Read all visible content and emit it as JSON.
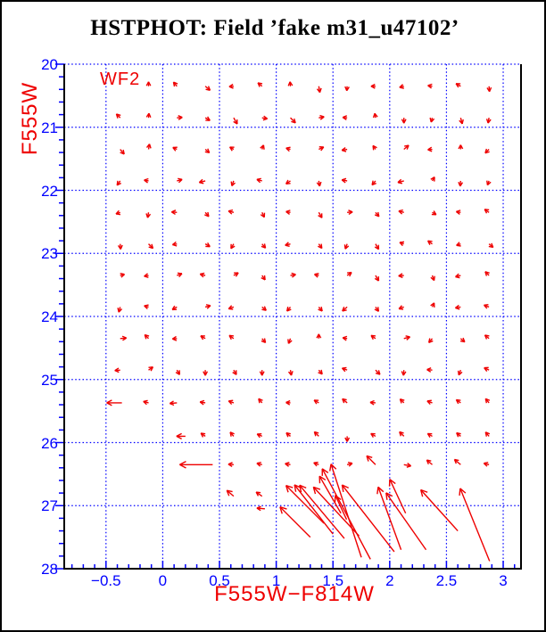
{
  "title": "HSTPHOT: Field ’fake m31_u47102’",
  "labels": {
    "field_label": "WF2",
    "x_axis": "F555W−F814W",
    "y_axis": "F555W"
  },
  "colors": {
    "background": "#ffffff",
    "frame": "#000000",
    "axis_blue": "#0000ff",
    "arrow_red": "#ee0000",
    "title_black": "#000000"
  },
  "chart_data": {
    "type": "quiver",
    "title": "HSTPHOT: Field ’fake m31_u47102’",
    "xlabel": "F555W−F814W",
    "ylabel": "F555W",
    "annotation": "WF2",
    "xlim": [
      -0.868,
      3.157
    ],
    "ylim": [
      20,
      28
    ],
    "y_axis_inverted_downward": true,
    "grid": "dotted",
    "x_major_ticks": [
      -0.5,
      0,
      0.5,
      1,
      1.5,
      2,
      2.5,
      3
    ],
    "x_tick_labels": [
      "−0.5",
      "0",
      "0.5",
      "1",
      "1.5",
      "2",
      "2.5",
      "3"
    ],
    "x_minor_step": 0.1,
    "y_major_ticks": [
      20,
      21,
      22,
      23,
      24,
      25,
      26,
      27,
      28
    ],
    "y_tick_labels": [
      "20",
      "21",
      "22",
      "23",
      "24",
      "25",
      "26",
      "27",
      "28"
    ],
    "y_minor_step": 0.2,
    "grid_x": [
      -0.5,
      0,
      0.5,
      1,
      1.5,
      2,
      2.5,
      3
    ],
    "grid_y": [
      20,
      21,
      22,
      23,
      24,
      25,
      26,
      27
    ],
    "arrow_format": "[color, magnitude, direction_deg (0=redder,90=brighter), length_px]",
    "arrows": [
      [
        -0.125,
        20.35,
        90,
        5
      ],
      [
        0.125,
        20.35,
        130,
        6
      ],
      [
        0.375,
        20.35,
        320,
        7
      ],
      [
        0.625,
        20.35,
        185,
        5
      ],
      [
        0.875,
        20.35,
        140,
        6
      ],
      [
        1.125,
        20.35,
        95,
        5
      ],
      [
        1.375,
        20.35,
        280,
        7
      ],
      [
        1.625,
        20.35,
        265,
        5
      ],
      [
        1.875,
        20.35,
        180,
        5
      ],
      [
        2.125,
        20.35,
        195,
        5
      ],
      [
        2.375,
        20.35,
        170,
        5
      ],
      [
        2.625,
        20.35,
        150,
        6
      ],
      [
        2.875,
        20.35,
        275,
        6
      ],
      [
        -0.375,
        20.85,
        135,
        6
      ],
      [
        -0.125,
        20.85,
        85,
        5
      ],
      [
        0.125,
        20.85,
        5,
        6
      ],
      [
        0.375,
        20.85,
        330,
        6
      ],
      [
        0.625,
        20.85,
        300,
        8
      ],
      [
        0.875,
        20.85,
        350,
        6
      ],
      [
        1.125,
        20.85,
        315,
        8
      ],
      [
        1.375,
        20.85,
        10,
        6
      ],
      [
        1.625,
        20.85,
        175,
        5
      ],
      [
        1.875,
        20.85,
        100,
        5
      ],
      [
        2.125,
        20.85,
        270,
        6
      ],
      [
        2.375,
        20.85,
        255,
        5
      ],
      [
        2.625,
        20.85,
        285,
        7
      ],
      [
        2.875,
        20.85,
        260,
        6
      ],
      [
        -0.375,
        21.35,
        310,
        7
      ],
      [
        -0.125,
        21.35,
        80,
        6
      ],
      [
        0.125,
        21.35,
        155,
        5
      ],
      [
        0.375,
        21.35,
        320,
        6
      ],
      [
        0.625,
        21.35,
        150,
        5
      ],
      [
        0.875,
        21.35,
        70,
        5
      ],
      [
        1.125,
        21.35,
        165,
        5
      ],
      [
        1.375,
        21.35,
        25,
        6
      ],
      [
        1.625,
        21.35,
        190,
        6
      ],
      [
        1.875,
        21.35,
        125,
        5
      ],
      [
        2.125,
        21.35,
        40,
        7
      ],
      [
        2.375,
        21.35,
        185,
        5
      ],
      [
        2.625,
        21.35,
        90,
        5
      ],
      [
        2.875,
        21.35,
        225,
        6
      ],
      [
        -0.375,
        21.85,
        235,
        6
      ],
      [
        -0.125,
        21.85,
        170,
        5
      ],
      [
        0.125,
        21.85,
        15,
        6
      ],
      [
        0.375,
        21.85,
        195,
        7
      ],
      [
        0.625,
        21.85,
        250,
        6
      ],
      [
        0.875,
        21.85,
        165,
        6
      ],
      [
        1.125,
        21.85,
        215,
        6
      ],
      [
        1.375,
        21.85,
        280,
        6
      ],
      [
        1.625,
        21.85,
        170,
        6
      ],
      [
        1.875,
        21.85,
        230,
        6
      ],
      [
        2.125,
        21.85,
        195,
        7
      ],
      [
        2.375,
        21.85,
        60,
        5
      ],
      [
        2.625,
        21.85,
        265,
        6
      ],
      [
        2.875,
        21.85,
        250,
        5
      ],
      [
        -0.375,
        22.35,
        200,
        5
      ],
      [
        -0.125,
        22.35,
        260,
        6
      ],
      [
        0.125,
        22.35,
        175,
        6
      ],
      [
        0.375,
        22.35,
        310,
        6
      ],
      [
        0.625,
        22.35,
        165,
        6
      ],
      [
        0.875,
        22.35,
        295,
        6
      ],
      [
        1.125,
        22.35,
        170,
        5
      ],
      [
        1.375,
        22.35,
        300,
        7
      ],
      [
        1.625,
        22.35,
        5,
        6
      ],
      [
        1.875,
        22.35,
        310,
        6
      ],
      [
        2.125,
        22.35,
        165,
        6
      ],
      [
        2.375,
        22.35,
        330,
        5
      ],
      [
        2.625,
        22.35,
        170,
        5
      ],
      [
        2.875,
        22.35,
        145,
        6
      ],
      [
        -0.375,
        22.85,
        275,
        6
      ],
      [
        -0.125,
        22.85,
        315,
        7
      ],
      [
        0.125,
        22.85,
        190,
        5
      ],
      [
        0.375,
        22.85,
        330,
        6
      ],
      [
        0.625,
        22.85,
        240,
        6
      ],
      [
        0.875,
        22.85,
        310,
        6
      ],
      [
        1.125,
        22.85,
        195,
        6
      ],
      [
        1.375,
        22.85,
        305,
        6
      ],
      [
        1.625,
        22.85,
        250,
        6
      ],
      [
        1.875,
        22.85,
        300,
        7
      ],
      [
        2.125,
        22.85,
        160,
        5
      ],
      [
        2.375,
        22.85,
        145,
        6
      ],
      [
        2.625,
        22.85,
        200,
        5
      ],
      [
        2.875,
        22.85,
        320,
        6
      ],
      [
        -0.375,
        23.35,
        15,
        5
      ],
      [
        -0.125,
        23.35,
        190,
        5
      ],
      [
        0.125,
        23.35,
        20,
        6
      ],
      [
        0.375,
        23.35,
        165,
        6
      ],
      [
        0.625,
        23.35,
        30,
        6
      ],
      [
        0.875,
        23.35,
        305,
        6
      ],
      [
        1.125,
        23.35,
        10,
        6
      ],
      [
        1.375,
        23.35,
        165,
        5
      ],
      [
        1.625,
        23.35,
        35,
        6
      ],
      [
        1.875,
        23.35,
        300,
        7
      ],
      [
        2.125,
        23.35,
        185,
        6
      ],
      [
        2.375,
        23.35,
        290,
        6
      ],
      [
        2.625,
        23.35,
        195,
        6
      ],
      [
        2.875,
        23.35,
        135,
        6
      ],
      [
        -0.375,
        23.85,
        255,
        6
      ],
      [
        -0.125,
        23.85,
        165,
        5
      ],
      [
        0.125,
        23.85,
        210,
        6
      ],
      [
        0.375,
        23.85,
        15,
        6
      ],
      [
        0.625,
        23.85,
        200,
        6
      ],
      [
        0.875,
        23.85,
        320,
        6
      ],
      [
        1.125,
        23.85,
        230,
        6
      ],
      [
        1.375,
        23.85,
        310,
        6
      ],
      [
        1.625,
        23.85,
        220,
        7
      ],
      [
        1.875,
        23.85,
        305,
        6
      ],
      [
        2.125,
        23.85,
        200,
        6
      ],
      [
        2.375,
        23.85,
        65,
        5
      ],
      [
        2.625,
        23.85,
        190,
        6
      ],
      [
        2.875,
        23.85,
        160,
        6
      ],
      [
        -0.375,
        24.35,
        5,
        7
      ],
      [
        -0.125,
        24.35,
        135,
        6
      ],
      [
        0.125,
        24.35,
        185,
        5
      ],
      [
        0.375,
        24.35,
        150,
        6
      ],
      [
        0.625,
        24.35,
        145,
        6
      ],
      [
        0.875,
        24.35,
        310,
        6
      ],
      [
        1.125,
        24.35,
        250,
        6
      ],
      [
        1.375,
        24.35,
        90,
        5
      ],
      [
        1.625,
        24.35,
        170,
        5
      ],
      [
        1.875,
        24.35,
        145,
        6
      ],
      [
        2.125,
        24.35,
        15,
        7
      ],
      [
        2.375,
        24.35,
        230,
        6
      ],
      [
        2.625,
        24.35,
        320,
        6
      ],
      [
        2.875,
        24.35,
        140,
        6
      ],
      [
        -0.375,
        24.85,
        185,
        6
      ],
      [
        -0.125,
        24.85,
        35,
        6
      ],
      [
        0.125,
        24.85,
        300,
        6
      ],
      [
        0.375,
        24.85,
        270,
        6
      ],
      [
        0.625,
        24.85,
        300,
        6
      ],
      [
        0.875,
        24.85,
        270,
        6
      ],
      [
        1.125,
        24.85,
        280,
        6
      ],
      [
        1.375,
        24.85,
        310,
        6
      ],
      [
        1.625,
        24.85,
        160,
        6
      ],
      [
        1.875,
        24.85,
        315,
        7
      ],
      [
        2.125,
        24.85,
        265,
        6
      ],
      [
        2.375,
        24.85,
        175,
        6
      ],
      [
        2.625,
        24.85,
        250,
        6
      ],
      [
        2.875,
        24.85,
        155,
        6
      ],
      [
        -0.36,
        25.37,
        180,
        17
      ],
      [
        -0.125,
        25.37,
        165,
        6
      ],
      [
        0.125,
        25.37,
        185,
        8
      ],
      [
        0.375,
        25.37,
        170,
        6
      ],
      [
        0.625,
        25.37,
        160,
        6
      ],
      [
        0.875,
        25.37,
        130,
        6
      ],
      [
        1.125,
        25.37,
        175,
        5
      ],
      [
        1.375,
        25.37,
        150,
        6
      ],
      [
        1.625,
        25.37,
        140,
        7
      ],
      [
        1.875,
        25.37,
        175,
        6
      ],
      [
        2.125,
        25.37,
        135,
        6
      ],
      [
        2.375,
        25.37,
        160,
        6
      ],
      [
        2.625,
        25.37,
        145,
        6
      ],
      [
        2.875,
        25.37,
        130,
        6
      ],
      [
        0.2,
        25.9,
        180,
        10
      ],
      [
        0.375,
        25.9,
        145,
        6
      ],
      [
        0.625,
        25.9,
        130,
        6
      ],
      [
        0.875,
        25.9,
        155,
        6
      ],
      [
        1.125,
        25.9,
        140,
        6
      ],
      [
        1.375,
        25.9,
        135,
        7
      ],
      [
        1.625,
        25.9,
        270,
        6
      ],
      [
        1.875,
        25.9,
        150,
        6
      ],
      [
        2.125,
        25.9,
        135,
        7
      ],
      [
        2.375,
        25.9,
        150,
        6
      ],
      [
        2.625,
        25.9,
        140,
        6
      ],
      [
        2.875,
        25.9,
        130,
        6
      ],
      [
        0.44,
        26.35,
        180,
        37
      ],
      [
        0.625,
        26.35,
        175,
        6
      ],
      [
        0.875,
        26.35,
        165,
        6
      ],
      [
        1.125,
        26.35,
        170,
        6
      ],
      [
        1.375,
        26.35,
        160,
        6
      ],
      [
        1.625,
        26.35,
        15,
        6
      ],
      [
        1.875,
        26.35,
        135,
        14
      ],
      [
        2.125,
        26.35,
        350,
        8
      ],
      [
        2.375,
        26.35,
        140,
        8
      ],
      [
        2.625,
        26.35,
        140,
        9
      ],
      [
        2.875,
        26.35,
        165,
        6
      ],
      [
        0.625,
        26.85,
        140,
        10
      ],
      [
        0.875,
        26.85,
        145,
        8
      ],
      [
        0.9,
        27.05,
        175,
        9
      ],
      [
        1.42,
        27.28,
        135,
        60
      ],
      [
        1.6,
        27.52,
        130,
        78
      ],
      [
        1.75,
        27.82,
        108,
        110
      ],
      [
        1.5,
        27.45,
        128,
        70
      ],
      [
        1.83,
        27.85,
        118,
        115
      ],
      [
        1.73,
        27.48,
        133,
        75
      ],
      [
        2.04,
        27.73,
        128,
        95
      ],
      [
        1.57,
        27.12,
        120,
        48
      ],
      [
        2.1,
        27.7,
        110,
        75
      ],
      [
        2.32,
        27.7,
        125,
        78
      ],
      [
        2.14,
        27.12,
        115,
        42
      ],
      [
        2.6,
        27.4,
        132,
        62
      ],
      [
        2.88,
        27.88,
        112,
        88
      ],
      [
        1.3,
        27.5,
        135,
        48
      ],
      [
        1.62,
        27.22,
        115,
        30
      ]
    ]
  }
}
